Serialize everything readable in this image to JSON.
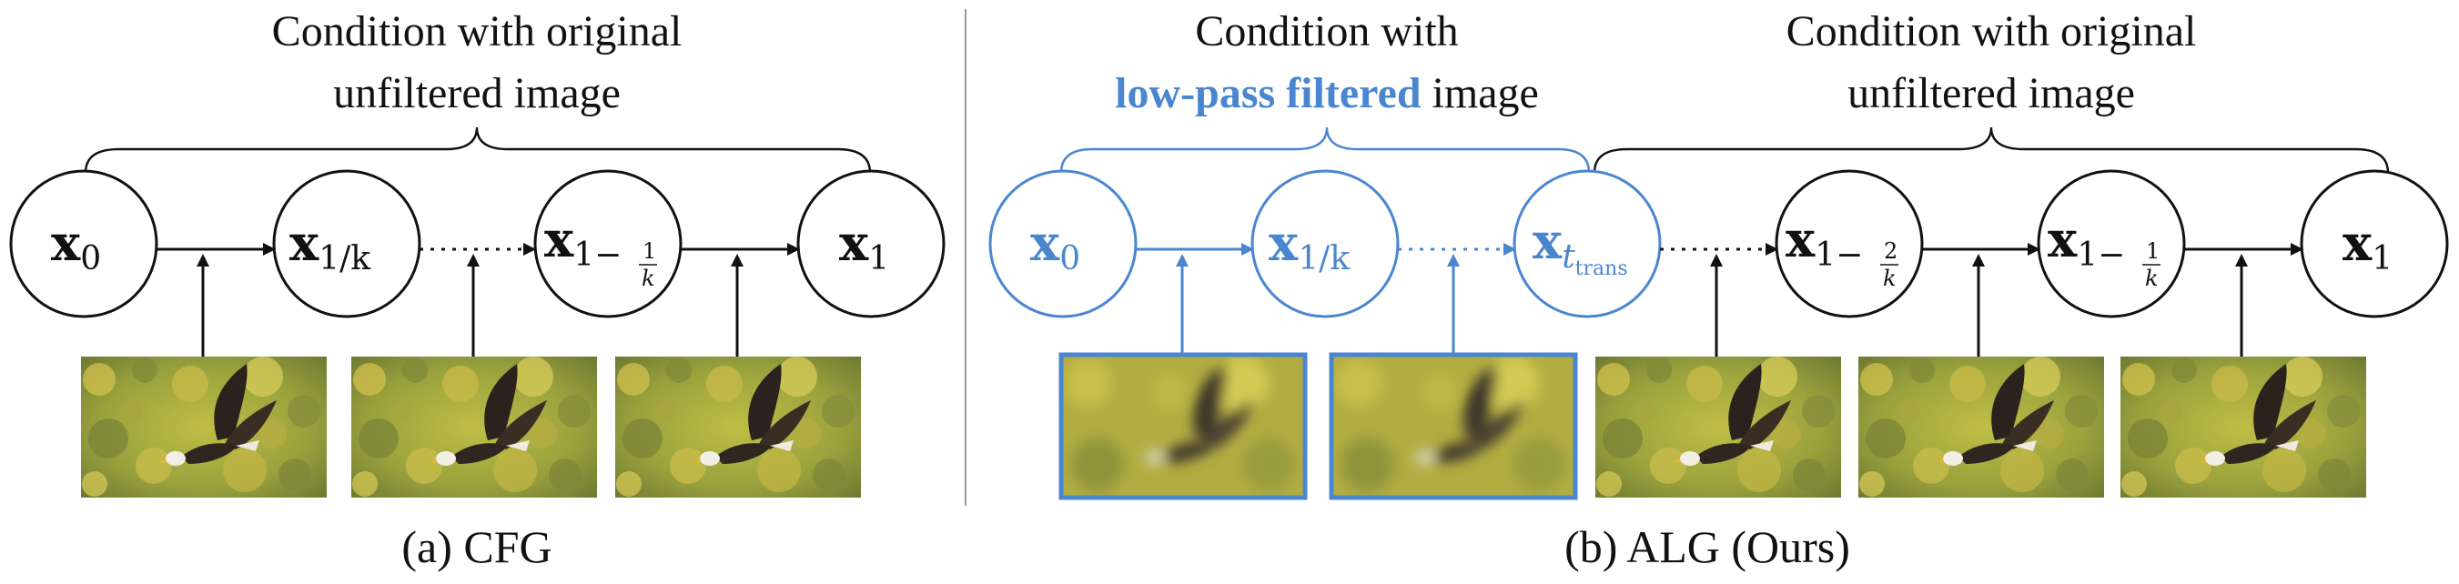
{
  "colors": {
    "black": "#111111",
    "blue": "#4a86d0",
    "divider": "#9a9a9a"
  },
  "cfg": {
    "heading_line1": "Condition with original",
    "heading_line2": "unfiltered image",
    "nodes": [
      {
        "base": "x",
        "sub": "0",
        "frac": null
      },
      {
        "base": "x",
        "sub": "1/k",
        "frac": null
      },
      {
        "base": "x",
        "sub": "1−",
        "frac": {
          "num": "1",
          "den": "k"
        }
      },
      {
        "base": "x",
        "sub": "1",
        "frac": null
      }
    ],
    "image_icon": "eagle-photo",
    "caption": "(a) CFG"
  },
  "alg": {
    "heading_left_line1": "Condition with",
    "heading_left_highlight": "low-pass filtered",
    "heading_left_rest": " image",
    "heading_right_line1": "Condition with original",
    "heading_right_line2": "unfiltered image",
    "nodes": [
      {
        "base": "x",
        "sub": "0",
        "frac": null
      },
      {
        "base": "x",
        "sub": "1/k",
        "frac": null
      },
      {
        "base": "x",
        "sub": "t",
        "subsub": "trans",
        "frac": null
      },
      {
        "base": "x",
        "sub": "1−",
        "frac": {
          "num": "2",
          "den": "k"
        }
      },
      {
        "base": "x",
        "sub": "1−",
        "frac": {
          "num": "1",
          "den": "k"
        }
      },
      {
        "base": "x",
        "sub": "1",
        "frac": null
      }
    ],
    "image_icon": "eagle-photo",
    "blurred_image_icon": "blurred-eagle-photo",
    "caption": "(b) ALG (Ours)"
  }
}
